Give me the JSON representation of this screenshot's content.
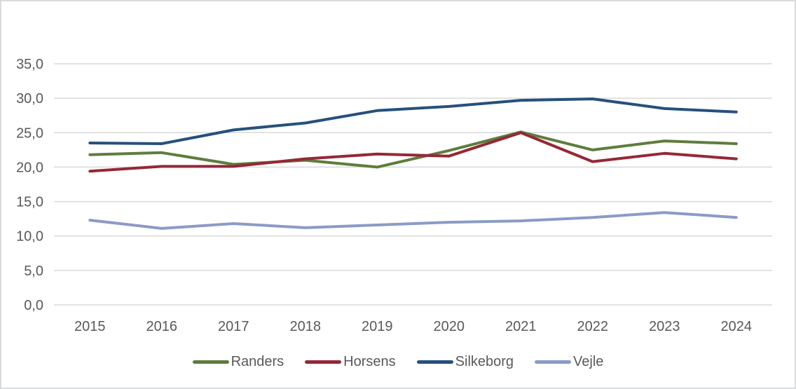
{
  "frame": {
    "background_color": "#ffffff",
    "border_color": "#d9dadc"
  },
  "chart_data": {
    "type": "line",
    "title": "",
    "xlabel": "",
    "ylabel": "",
    "categories": [
      "2015",
      "2016",
      "2017",
      "2018",
      "2019",
      "2020",
      "2021",
      "2022",
      "2023",
      "2024"
    ],
    "series": [
      {
        "name": "Randers",
        "color": "#5e7d3c",
        "values": [
          21.8,
          22.1,
          20.4,
          21.0,
          20.0,
          22.4,
          25.1,
          22.5,
          23.8,
          23.4
        ]
      },
      {
        "name": "Horsens",
        "color": "#942838",
        "values": [
          19.4,
          20.1,
          20.1,
          21.2,
          21.9,
          21.6,
          25.0,
          20.8,
          22.0,
          21.2
        ]
      },
      {
        "name": "Silkeborg",
        "color": "#26507c",
        "values": [
          23.5,
          23.4,
          25.4,
          26.4,
          28.2,
          28.8,
          29.7,
          29.9,
          28.5,
          28.0
        ]
      },
      {
        "name": "Vejle",
        "color": "#8b9bc7",
        "values": [
          12.3,
          11.1,
          11.8,
          11.2,
          11.6,
          12.0,
          12.2,
          12.7,
          13.4,
          12.7
        ]
      }
    ],
    "y_axis": {
      "min": 0,
      "max": 35,
      "step": 5,
      "tick_labels": [
        "0,0",
        "5,0",
        "10,0",
        "15,0",
        "20,0",
        "25,0",
        "30,0",
        "35,0"
      ],
      "decimal_separator": "comma"
    },
    "grid": "horizontal",
    "gridline_color": "#d9d9d9",
    "axis_text_color": "#595959",
    "legend_position": "bottom",
    "line_width": 4
  }
}
